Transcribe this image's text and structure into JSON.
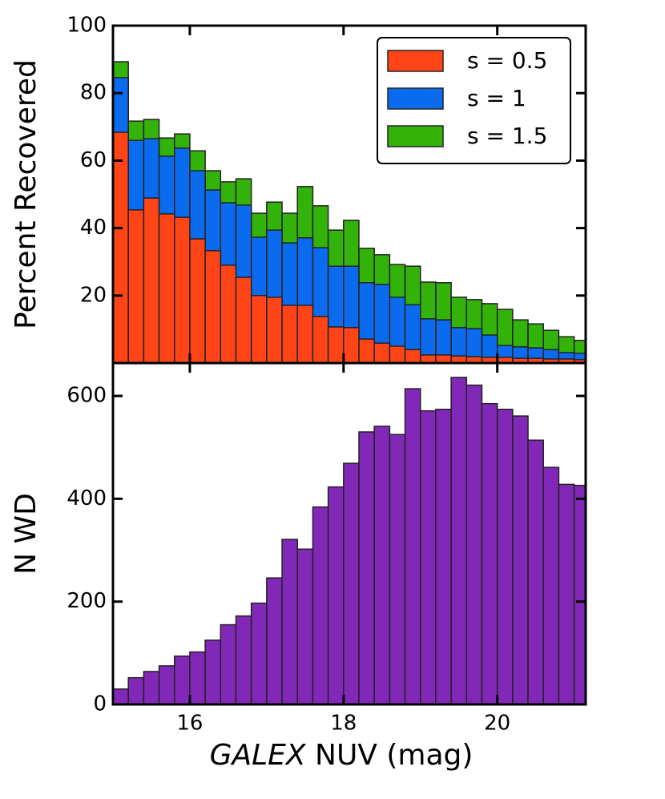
{
  "chart_data": [
    {
      "type": "histogram",
      "ylabel": "Percent Recovered",
      "bins": [
        15.0,
        15.2,
        15.4,
        15.6,
        15.8,
        16.0,
        16.2,
        16.4,
        16.6,
        16.8,
        17.0,
        17.2,
        17.4,
        17.6,
        17.8,
        18.0,
        18.2,
        18.4,
        18.6,
        18.8,
        19.0,
        19.2,
        19.4,
        19.6,
        19.8,
        20.0,
        20.2,
        20.4,
        20.6,
        20.8,
        21.0,
        21.2
      ],
      "series": [
        {
          "name": "s = 1.5",
          "color": "#33b30a",
          "values": [
            89.3,
            71.7,
            72.2,
            66.7,
            67.9,
            62.9,
            57.0,
            53.7,
            54.6,
            44.4,
            47.7,
            44.4,
            52.3,
            46.6,
            39.4,
            42.3,
            34.0,
            32.1,
            29.2,
            28.7,
            24.0,
            23.8,
            19.5,
            18.8,
            17.6,
            15.9,
            12.8,
            11.6,
            9.7,
            7.8,
            6.7
          ]
        },
        {
          "name": "s = 1",
          "color": "#0a6bef",
          "values": [
            84.6,
            66.0,
            66.5,
            61.3,
            63.7,
            57.0,
            51.3,
            47.5,
            46.8,
            37.3,
            39.4,
            35.6,
            37.1,
            34.2,
            28.7,
            28.7,
            23.8,
            23.3,
            19.5,
            17.3,
            13.1,
            12.8,
            10.5,
            10.2,
            8.3,
            5.2,
            4.8,
            4.5,
            4.0,
            3.1,
            2.9
          ]
        },
        {
          "name": "s = 0.5",
          "color": "#ff4518",
          "values": [
            68.4,
            45.4,
            48.9,
            44.2,
            43.2,
            36.8,
            33.3,
            29.0,
            25.4,
            20.0,
            19.5,
            17.1,
            17.1,
            13.8,
            10.7,
            10.5,
            7.1,
            5.9,
            5.0,
            4.0,
            2.4,
            2.4,
            2.1,
            1.9,
            1.7,
            1.7,
            1.4,
            1.4,
            1.2,
            1.2,
            1.0
          ]
        }
      ],
      "legend_order": [
        2,
        1,
        0
      ],
      "legend": "upper right",
      "xlim": [
        15,
        21.15
      ],
      "ylim": [
        0,
        100
      ],
      "yticks": [
        20,
        40,
        60,
        80,
        100
      ]
    },
    {
      "type": "histogram",
      "ylabel": "N WD",
      "xlabel": {
        "italic": "GALEX",
        "text": "NUV (mag)"
      },
      "bins": [
        15.0,
        15.2,
        15.4,
        15.6,
        15.8,
        16.0,
        16.2,
        16.4,
        16.6,
        16.8,
        17.0,
        17.2,
        17.4,
        17.6,
        17.8,
        18.0,
        18.2,
        18.4,
        18.6,
        18.8,
        19.0,
        19.2,
        19.4,
        19.6,
        19.8,
        20.0,
        20.2,
        20.4,
        20.6,
        20.8,
        21.0,
        21.2
      ],
      "series": [
        {
          "color": "#8228b8",
          "values": [
            30,
            52,
            64,
            75,
            94,
            102,
            125,
            155,
            172,
            197,
            246,
            321,
            302,
            384,
            423,
            469,
            530,
            541,
            525,
            614,
            571,
            574,
            636,
            621,
            585,
            574,
            561,
            514,
            461,
            428,
            426
          ]
        }
      ],
      "xlim": [
        15,
        21.15
      ],
      "ylim": [
        0,
        664
      ],
      "yticks": [
        0,
        200,
        400,
        600
      ],
      "xticks": [
        16,
        18,
        20
      ]
    }
  ]
}
